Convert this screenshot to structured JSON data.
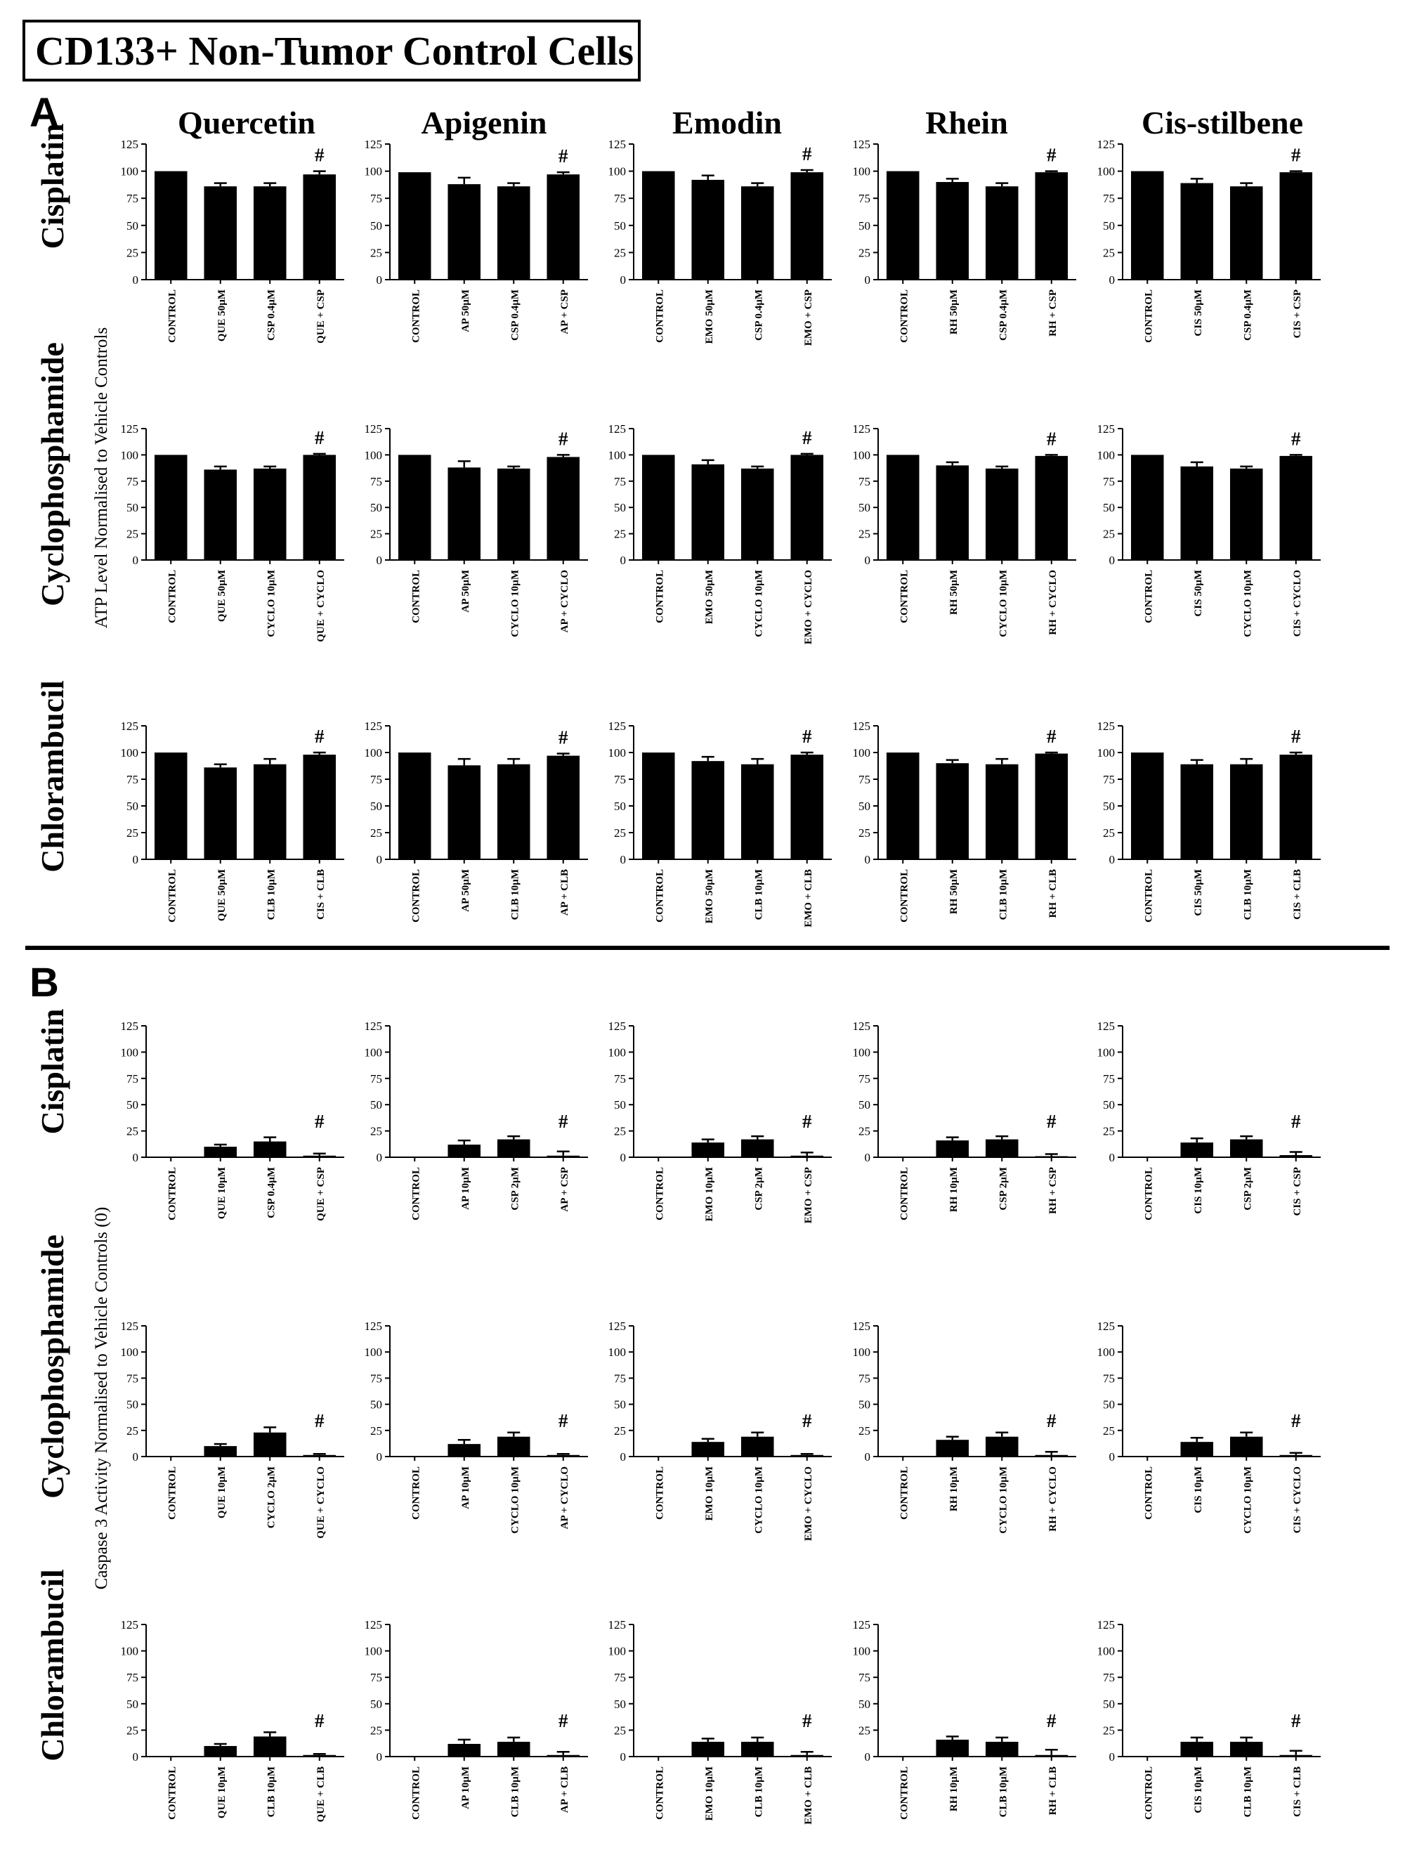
{
  "figure": {
    "title": "CD133+ Non-Tumor Control Cells",
    "panels": [
      {
        "letter": "A",
        "y_title": "ATP Level Normalised to Vehicle Controls"
      },
      {
        "letter": "B",
        "y_title": "Caspase 3 Activity Normalised to Vehicle Controls (0)"
      }
    ],
    "compounds": [
      "Quercetin",
      "Apigenin",
      "Emodin",
      "Rhein",
      "Cis-stilbene"
    ],
    "drugs": [
      "Cisplatin",
      "Cyclophosphamide",
      "Chlorambucil"
    ],
    "significance_marker": "#",
    "colors": {
      "bar": "#000000",
      "axis": "#000000",
      "background": "#ffffff"
    }
  },
  "chart_data": {
    "type": "bar",
    "yticks": [
      "0",
      "25",
      "50",
      "75",
      "100",
      "125"
    ],
    "ylim": [
      0,
      125
    ],
    "error_bars": true,
    "grid": false,
    "legend": "none",
    "panels": [
      {
        "panel": "A",
        "rows": [
          {
            "drug": "Cisplatin",
            "charts": [
              {
                "compound": "Quercetin",
                "categories": [
                  "CONTROL",
                  "QUE 50µM",
                  "CSP 0.4µM",
                  "QUE + CSP"
                ],
                "values": [
                  100,
                  86,
                  86,
                  97
                ],
                "errors": [
                  0,
                  3,
                  3,
                  3
                ],
                "marker_index": 3
              },
              {
                "compound": "Apigenin",
                "categories": [
                  "CONTROL",
                  "AP 50µM",
                  "CSP 0.4µM",
                  "AP + CSP"
                ],
                "values": [
                  99,
                  88,
                  86,
                  97
                ],
                "errors": [
                  0,
                  6,
                  3,
                  2
                ],
                "marker_index": 3
              },
              {
                "compound": "Emodin",
                "categories": [
                  "CONTROL",
                  "EMO 50µM",
                  "CSP 0.4µM",
                  "EMO + CSP"
                ],
                "values": [
                  100,
                  92,
                  86,
                  99
                ],
                "errors": [
                  0,
                  4,
                  3,
                  2
                ],
                "marker_index": 3
              },
              {
                "compound": "Rhein",
                "categories": [
                  "CONTROL",
                  "RH 50µM",
                  "CSP 0.4µM",
                  "RH + CSP"
                ],
                "values": [
                  100,
                  90,
                  86,
                  99
                ],
                "errors": [
                  0,
                  3,
                  3,
                  1
                ],
                "marker_index": 3
              },
              {
                "compound": "Cis-stilbene",
                "categories": [
                  "CONTROL",
                  "CIS 50µM",
                  "CSP 0.4µM",
                  "CIS + CSP"
                ],
                "values": [
                  100,
                  89,
                  86,
                  99
                ],
                "errors": [
                  0,
                  4,
                  3,
                  1
                ],
                "marker_index": 3
              }
            ]
          },
          {
            "drug": "Cyclophosphamide",
            "charts": [
              {
                "compound": "Quercetin",
                "categories": [
                  "CONTROL",
                  "QUE 50µM",
                  "CYCLO 10µM",
                  "QUE + CYCLO"
                ],
                "values": [
                  100,
                  86,
                  87,
                  100
                ],
                "errors": [
                  0,
                  3,
                  2,
                  1
                ],
                "marker_index": 3
              },
              {
                "compound": "Apigenin",
                "categories": [
                  "CONTROL",
                  "AP 50µM",
                  "CYCLO 10µM",
                  "AP + CYCLO"
                ],
                "values": [
                  100,
                  88,
                  87,
                  98
                ],
                "errors": [
                  0,
                  6,
                  2,
                  2
                ],
                "marker_index": 3
              },
              {
                "compound": "Emodin",
                "categories": [
                  "CONTROL",
                  "EMO 50µM",
                  "CYCLO 10µM",
                  "EMO + CYCLO"
                ],
                "values": [
                  100,
                  91,
                  87,
                  100
                ],
                "errors": [
                  0,
                  4,
                  2,
                  1
                ],
                "marker_index": 3
              },
              {
                "compound": "Rhein",
                "categories": [
                  "CONTROL",
                  "RH 50µM",
                  "CYCLO 10µM",
                  "RH + CYCLO"
                ],
                "values": [
                  100,
                  90,
                  87,
                  99
                ],
                "errors": [
                  0,
                  3,
                  2,
                  1
                ],
                "marker_index": 3
              },
              {
                "compound": "Cis-stilbene",
                "categories": [
                  "CONTROL",
                  "CIS 50µM",
                  "CYCLO 10µM",
                  "CIS + CYCLO"
                ],
                "values": [
                  100,
                  89,
                  87,
                  99
                ],
                "errors": [
                  0,
                  4,
                  2,
                  1
                ],
                "marker_index": 3
              }
            ]
          },
          {
            "drug": "Chlorambucil",
            "charts": [
              {
                "compound": "Quercetin",
                "categories": [
                  "CONTROL",
                  "QUE 50µM",
                  "CLB 10µM",
                  "CIS + CLB"
                ],
                "values": [
                  100,
                  86,
                  89,
                  98
                ],
                "errors": [
                  0,
                  3,
                  5,
                  2
                ],
                "marker_index": 3
              },
              {
                "compound": "Apigenin",
                "categories": [
                  "CONTROL",
                  "AP 50µM",
                  "CLB 10µM",
                  "AP + CLB"
                ],
                "values": [
                  100,
                  88,
                  89,
                  97
                ],
                "errors": [
                  0,
                  6,
                  5,
                  2
                ],
                "marker_index": 3
              },
              {
                "compound": "Emodin",
                "categories": [
                  "CONTROL",
                  "EMO 50µM",
                  "CLB 10µM",
                  "EMO + CLB"
                ],
                "values": [
                  100,
                  92,
                  89,
                  98
                ],
                "errors": [
                  0,
                  4,
                  5,
                  2
                ],
                "marker_index": 3
              },
              {
                "compound": "Rhein",
                "categories": [
                  "CONTROL",
                  "RH 50µM",
                  "CLB 10µM",
                  "RH + CLB"
                ],
                "values": [
                  100,
                  90,
                  89,
                  99
                ],
                "errors": [
                  0,
                  3,
                  5,
                  1
                ],
                "marker_index": 3
              },
              {
                "compound": "Cis-stilbene",
                "categories": [
                  "CONTROL",
                  "CIS 50µM",
                  "CLB 10µM",
                  "CIS + CLB"
                ],
                "values": [
                  100,
                  89,
                  89,
                  98
                ],
                "errors": [
                  0,
                  4,
                  5,
                  2
                ],
                "marker_index": 3
              }
            ]
          }
        ]
      },
      {
        "panel": "B",
        "rows": [
          {
            "drug": "Cisplatin",
            "charts": [
              {
                "compound": "Quercetin",
                "categories": [
                  "CONTROL",
                  "QUE 10µM",
                  "CSP 0.4µM",
                  "QUE + CSP"
                ],
                "values": [
                  0.5,
                  10,
                  15,
                  1.5
                ],
                "errors": [
                  0,
                  2,
                  4,
                  2
                ],
                "marker_index": 3
              },
              {
                "compound": "Apigenin",
                "categories": [
                  "CONTROL",
                  "AP 10µM",
                  "CSP 2µM",
                  "AP + CSP"
                ],
                "values": [
                  0,
                  12,
                  17,
                  1.5
                ],
                "errors": [
                  0,
                  4,
                  3,
                  4
                ],
                "marker_index": 3
              },
              {
                "compound": "Emodin",
                "categories": [
                  "CONTROL",
                  "EMO 10µM",
                  "CSP 2µM",
                  "EMO + CSP"
                ],
                "values": [
                  0,
                  14,
                  17,
                  1.5
                ],
                "errors": [
                  0,
                  3,
                  3,
                  3
                ],
                "marker_index": 3
              },
              {
                "compound": "Rhein",
                "categories": [
                  "CONTROL",
                  "RH 10µM",
                  "CSP 2µM",
                  "RH + CSP"
                ],
                "values": [
                  0,
                  16,
                  17,
                  1
                ],
                "errors": [
                  0,
                  3,
                  3,
                  2
                ],
                "marker_index": 3
              },
              {
                "compound": "Cis-stilbene",
                "categories": [
                  "CONTROL",
                  "CIS 10µM",
                  "CSP 2µM",
                  "CIS + CSP"
                ],
                "values": [
                  0,
                  14,
                  17,
                  2
                ],
                "errors": [
                  0,
                  4,
                  3,
                  3
                ],
                "marker_index": 3
              }
            ]
          },
          {
            "drug": "Cyclophosphamide",
            "charts": [
              {
                "compound": "Quercetin",
                "categories": [
                  "CONTROL",
                  "QUE 10µM",
                  "CYCLO 2µM",
                  "QUE + CYCLO"
                ],
                "values": [
                  0.5,
                  10,
                  23,
                  1.5
                ],
                "errors": [
                  0,
                  2,
                  5,
                  1
                ],
                "marker_index": 3
              },
              {
                "compound": "Apigenin",
                "categories": [
                  "CONTROL",
                  "AP 10µM",
                  "CYCLO 10µM",
                  "AP + CYCLO"
                ],
                "values": [
                  0,
                  12,
                  19,
                  1.5
                ],
                "errors": [
                  0,
                  4,
                  4,
                  1
                ],
                "marker_index": 3
              },
              {
                "compound": "Emodin",
                "categories": [
                  "CONTROL",
                  "EMO 10µM",
                  "CYCLO 10µM",
                  "EMO + CYCLO"
                ],
                "values": [
                  0,
                  14,
                  19,
                  1.5
                ],
                "errors": [
                  0,
                  3,
                  4,
                  1
                ],
                "marker_index": 3
              },
              {
                "compound": "Rhein",
                "categories": [
                  "CONTROL",
                  "RH 10µM",
                  "CYCLO 10µM",
                  "RH + CYCLO"
                ],
                "values": [
                  0,
                  16,
                  19,
                  1.5
                ],
                "errors": [
                  0,
                  3,
                  4,
                  3
                ],
                "marker_index": 3
              },
              {
                "compound": "Cis-stilbene",
                "categories": [
                  "CONTROL",
                  "CIS 10µM",
                  "CYCLO 10µM",
                  "CIS + CYCLO"
                ],
                "values": [
                  0,
                  14,
                  19,
                  1.5
                ],
                "errors": [
                  0,
                  4,
                  4,
                  2
                ],
                "marker_index": 3
              }
            ]
          },
          {
            "drug": "Chlorambucil",
            "charts": [
              {
                "compound": "Quercetin",
                "categories": [
                  "CONTROL",
                  "QUE 10µM",
                  "CLB 10µM",
                  "QUE + CLB"
                ],
                "values": [
                  0.5,
                  10,
                  19,
                  1.5
                ],
                "errors": [
                  0,
                  2,
                  4,
                  1
                ],
                "marker_index": 3
              },
              {
                "compound": "Apigenin",
                "categories": [
                  "CONTROL",
                  "AP 10µM",
                  "CLB 10µM",
                  "AP + CLB"
                ],
                "values": [
                  0,
                  12,
                  14,
                  1.5
                ],
                "errors": [
                  0,
                  4,
                  4,
                  3
                ],
                "marker_index": 3
              },
              {
                "compound": "Emodin",
                "categories": [
                  "CONTROL",
                  "EMO 10µM",
                  "CLB 10µM",
                  "EMO + CLB"
                ],
                "values": [
                  0,
                  14,
                  14,
                  1.5
                ],
                "errors": [
                  0,
                  3,
                  4,
                  3
                ],
                "marker_index": 3
              },
              {
                "compound": "Rhein",
                "categories": [
                  "CONTROL",
                  "RH 10µM",
                  "CLB 10µM",
                  "RH + CLB"
                ],
                "values": [
                  0,
                  16,
                  14,
                  1.5
                ],
                "errors": [
                  0,
                  3,
                  4,
                  5
                ],
                "marker_index": 3
              },
              {
                "compound": "Cis-stilbene",
                "categories": [
                  "CONTROL",
                  "CIS 10µM",
                  "CLB 10µM",
                  "CIS + CLB"
                ],
                "values": [
                  0,
                  14,
                  14,
                  1.5
                ],
                "errors": [
                  0,
                  4,
                  4,
                  4
                ],
                "marker_index": 3
              }
            ]
          }
        ]
      }
    ]
  }
}
